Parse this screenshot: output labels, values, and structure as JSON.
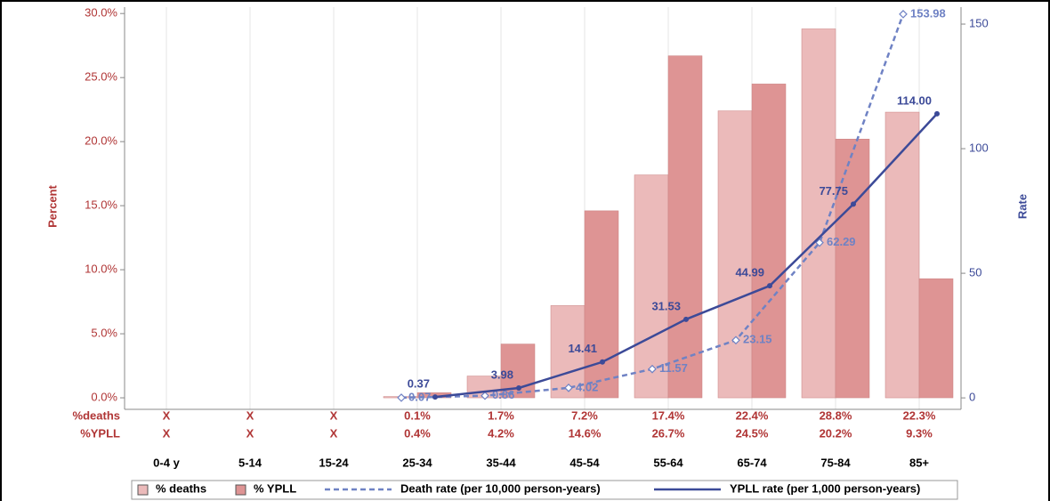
{
  "chart_data": {
    "type": "bar_line",
    "categories": [
      "0-4 y",
      "5-14",
      "15-24",
      "25-34",
      "35-44",
      "45-54",
      "55-64",
      "65-74",
      "75-84",
      "85+"
    ],
    "ylabel": "Percent",
    "y2label": "Rate",
    "ylim": [
      -0.9,
      30.5
    ],
    "yticks": [
      {
        "value": 0,
        "label": "0.0%"
      },
      {
        "value": 5,
        "label": "5.0%"
      },
      {
        "value": 10,
        "label": "10.0%"
      },
      {
        "value": 15,
        "label": "15.0%"
      },
      {
        "value": 20,
        "label": "20.0%"
      },
      {
        "value": 25,
        "label": "25.0%"
      },
      {
        "value": 30,
        "label": "30.0%"
      }
    ],
    "y2lim": [
      -4.6,
      156.8
    ],
    "y2ticks": [
      0,
      50,
      100,
      150
    ],
    "grid": true,
    "table_labels": [
      "%deaths",
      "%YPLL"
    ],
    "series": [
      {
        "name": "% deaths",
        "type": "bar",
        "color": "#ebbaba",
        "values": [
          null,
          null,
          null,
          0.1,
          1.7,
          7.2,
          17.4,
          22.4,
          28.8,
          22.3
        ],
        "value_labels": [
          "X",
          "X",
          "X",
          "0.1%",
          "1.7%",
          "7.2%",
          "17.4%",
          "22.4%",
          "28.8%",
          "22.3%"
        ]
      },
      {
        "name": "% YPLL",
        "type": "bar",
        "color": "#de9494",
        "values": [
          null,
          null,
          null,
          0.4,
          4.2,
          14.6,
          26.7,
          24.5,
          20.2,
          9.3
        ],
        "value_labels": [
          "X",
          "X",
          "X",
          "0.4%",
          "4.2%",
          "14.6%",
          "26.7%",
          "24.5%",
          "20.2%",
          "9.3%"
        ]
      },
      {
        "name": "Death rate (per 10,000 person-years)",
        "type": "line",
        "axis": "y2",
        "dashed": true,
        "marker": "diamond",
        "color": "#6f82c4",
        "values": [
          null,
          null,
          null,
          0.07,
          0.86,
          4.02,
          11.57,
          23.15,
          62.29,
          153.98
        ],
        "value_labels": [
          null,
          null,
          null,
          "0.07",
          "0.86",
          "4.02",
          "11.57",
          "23.15",
          "62.29",
          "153.98"
        ]
      },
      {
        "name": "YPLL rate (per 1,000 person-years)",
        "type": "line",
        "axis": "y2",
        "dashed": false,
        "marker": "circle",
        "color": "#3c4a98",
        "values": [
          null,
          null,
          null,
          0.37,
          3.98,
          14.41,
          31.53,
          44.99,
          77.75,
          114.0
        ],
        "value_labels": [
          null,
          null,
          null,
          "0.37",
          "3.98",
          "14.41",
          "31.53",
          "44.99",
          "77.75",
          "114.00"
        ]
      }
    ]
  }
}
